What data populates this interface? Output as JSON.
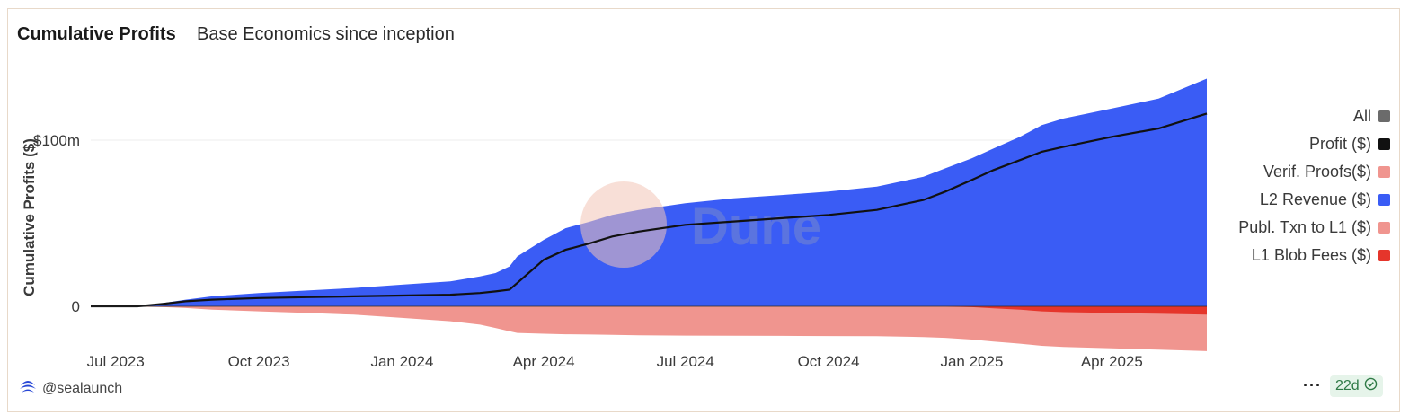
{
  "header": {
    "title": "Cumulative Profits",
    "subtitle": "Base Economics since inception"
  },
  "footer": {
    "user": "@sealaunch",
    "age": "22d",
    "more": "···"
  },
  "watermark": "Dune",
  "legend": [
    {
      "label": "All",
      "color": "#6b6b6b"
    },
    {
      "label": "Profit ($)",
      "color": "#111111"
    },
    {
      "label": "Verif. Proofs($)",
      "color": "#f0958f"
    },
    {
      "label": "L2 Revenue ($)",
      "color": "#3a5cf5"
    },
    {
      "label": "Publ. Txn to L1 ($)",
      "color": "#f0958f"
    },
    {
      "label": "L1 Blob Fees ($)",
      "color": "#e5352b"
    }
  ],
  "chart_data": {
    "type": "area",
    "ylabel": "Cumulative Profits ($)",
    "xlabel": "",
    "y_ticks": [
      {
        "value": 0,
        "label": "0"
      },
      {
        "value": 100,
        "label": "$100m"
      }
    ],
    "x_ticks": [
      "Jul 2023",
      "Oct 2023",
      "Jan 2024",
      "Apr 2024",
      "Jul 2024",
      "Oct 2024",
      "Jan 2025",
      "Apr 2025"
    ],
    "x_start": "2023-06-15",
    "units": "millions USD",
    "ylim": [
      -22,
      138
    ],
    "grid": "horizontal",
    "legend_position": "right",
    "x": [
      "2023-06-15",
      "2023-07-15",
      "2023-08-01",
      "2023-08-15",
      "2023-09-01",
      "2023-10-01",
      "2023-11-01",
      "2023-12-01",
      "2024-01-01",
      "2024-02-01",
      "2024-02-20",
      "2024-03-01",
      "2024-03-10",
      "2024-03-15",
      "2024-04-01",
      "2024-04-15",
      "2024-05-01",
      "2024-05-15",
      "2024-06-01",
      "2024-07-01",
      "2024-08-01",
      "2024-09-01",
      "2024-10-01",
      "2024-11-01",
      "2024-12-01",
      "2024-12-15",
      "2025-01-01",
      "2025-01-15",
      "2025-02-01",
      "2025-02-15",
      "2025-03-01",
      "2025-04-01",
      "2025-05-01",
      "2025-06-01"
    ],
    "series": [
      {
        "name": "L2 Revenue ($)",
        "color": "#3a5cf5",
        "values": [
          0,
          0,
          2,
          4,
          6,
          8,
          9.5,
          11,
          13,
          15,
          18,
          20,
          24,
          30,
          40,
          47,
          51,
          55,
          58,
          62,
          65,
          67,
          69,
          72,
          78,
          83,
          89,
          95,
          102,
          109,
          113,
          119,
          125,
          137
        ]
      },
      {
        "name": "Profit ($)",
        "color": "#111111",
        "values": [
          0,
          0,
          1.5,
          3,
          4,
          5,
          5.5,
          6,
          6.5,
          7,
          8,
          9,
          10,
          14,
          28,
          34,
          38,
          42,
          45,
          49,
          51,
          53,
          55,
          58,
          64,
          69,
          76,
          82,
          88,
          93,
          96,
          102,
          107,
          116
        ]
      },
      {
        "name": "Publ. Txn to L1 ($)",
        "color": "#f0958f",
        "values": [
          0,
          0,
          -0.5,
          -1,
          -2,
          -3,
          -4,
          -5,
          -7,
          -9,
          -11,
          -13,
          -15,
          -16,
          -16.5,
          -16.8,
          -17,
          -17.2,
          -17.4,
          -17.6,
          -17.7,
          -17.8,
          -17.9,
          -18,
          -18.5,
          -19,
          -19.5,
          -20,
          -20.5,
          -20.8,
          -21,
          -21.3,
          -21.6,
          -22
        ]
      },
      {
        "name": "L1 Blob Fees ($)",
        "color": "#e5352b",
        "values": [
          0,
          0,
          0,
          0,
          0,
          0,
          0,
          0,
          0,
          0,
          0,
          0,
          0,
          0,
          0,
          0,
          0,
          0,
          0,
          0,
          0,
          0,
          0,
          0,
          0,
          0,
          -0.5,
          -1.2,
          -2,
          -3,
          -3.5,
          -4,
          -4.5,
          -5
        ]
      }
    ]
  }
}
